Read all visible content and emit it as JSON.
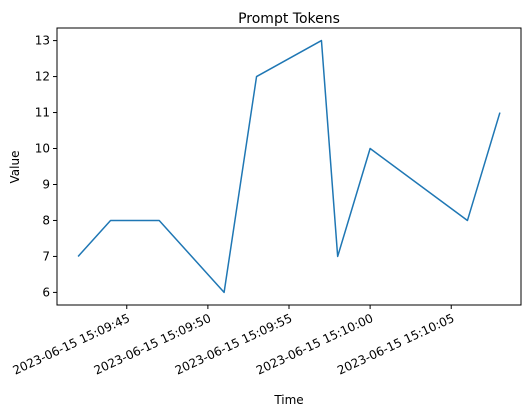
{
  "chart_data": {
    "type": "line",
    "title": "Prompt Tokens",
    "xlabel": "Time",
    "ylabel": "Value",
    "x": [
      "2023-06-15 15:09:42",
      "2023-06-15 15:09:44",
      "2023-06-15 15:09:47",
      "2023-06-15 15:09:51",
      "2023-06-15 15:09:53",
      "2023-06-15 15:09:57",
      "2023-06-15 15:09:58",
      "2023-06-15 15:10:00",
      "2023-06-15 15:10:06",
      "2023-06-15 15:10:08"
    ],
    "series": [
      {
        "name": "Prompt Tokens",
        "color": "#1f77b4",
        "values": [
          7,
          8,
          8,
          6,
          12,
          13,
          7,
          10,
          8,
          11
        ]
      }
    ],
    "xlim": [
      "2023-06-15 15:09:40.7",
      "2023-06-15 15:10:09.3"
    ],
    "xticks": [
      "2023-06-15 15:09:45",
      "2023-06-15 15:09:50",
      "2023-06-15 15:09:55",
      "2023-06-15 15:10:00",
      "2023-06-15 15:10:05"
    ],
    "ylim": [
      5.65,
      13.35
    ],
    "yticks": [
      6,
      7,
      8,
      9,
      10,
      11,
      12,
      13
    ],
    "grid": false
  }
}
